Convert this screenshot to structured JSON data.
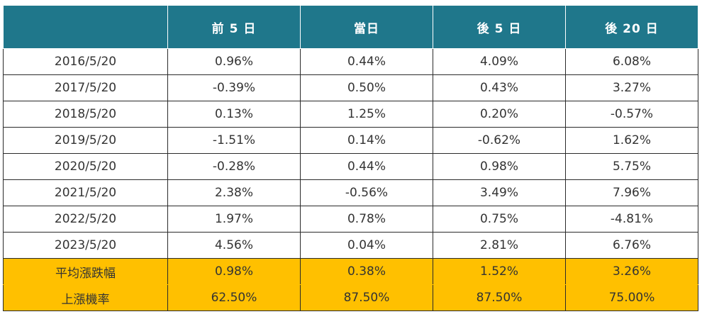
{
  "table": {
    "headers": [
      "",
      "前 5 日",
      "當日",
      "後 5 日",
      "後 20 日"
    ],
    "rows": [
      [
        "2016/5/20",
        "0.96%",
        "0.44%",
        "4.09%",
        "6.08%"
      ],
      [
        "2017/5/20",
        "-0.39%",
        "0.50%",
        "0.43%",
        "3.27%"
      ],
      [
        "2018/5/20",
        "0.13%",
        "1.25%",
        "0.20%",
        "-0.57%"
      ],
      [
        "2019/5/20",
        "-1.51%",
        "0.14%",
        "-0.62%",
        "1.62%"
      ],
      [
        "2020/5/20",
        "-0.28%",
        "0.44%",
        "0.98%",
        "5.75%"
      ],
      [
        "2021/5/20",
        "2.38%",
        "-0.56%",
        "3.49%",
        "7.96%"
      ],
      [
        "2022/5/20",
        "1.97%",
        "0.78%",
        "0.75%",
        "-4.81%"
      ],
      [
        "2023/5/20",
        "4.56%",
        "0.04%",
        "2.81%",
        "6.76%"
      ]
    ],
    "summary_rows": [
      [
        "平均漲跌幅",
        "0.98%",
        "0.38%",
        "1.52%",
        "3.26%"
      ],
      [
        "上漲機率",
        "62.50%",
        "87.50%",
        "87.50%",
        "75.00%"
      ]
    ]
  },
  "colors": {
    "header_bg": "#1f778b",
    "header_text": "#ffffff",
    "summary_bg": "#ffc000",
    "body_text": "#333333",
    "grid": "#2a2a2a"
  }
}
